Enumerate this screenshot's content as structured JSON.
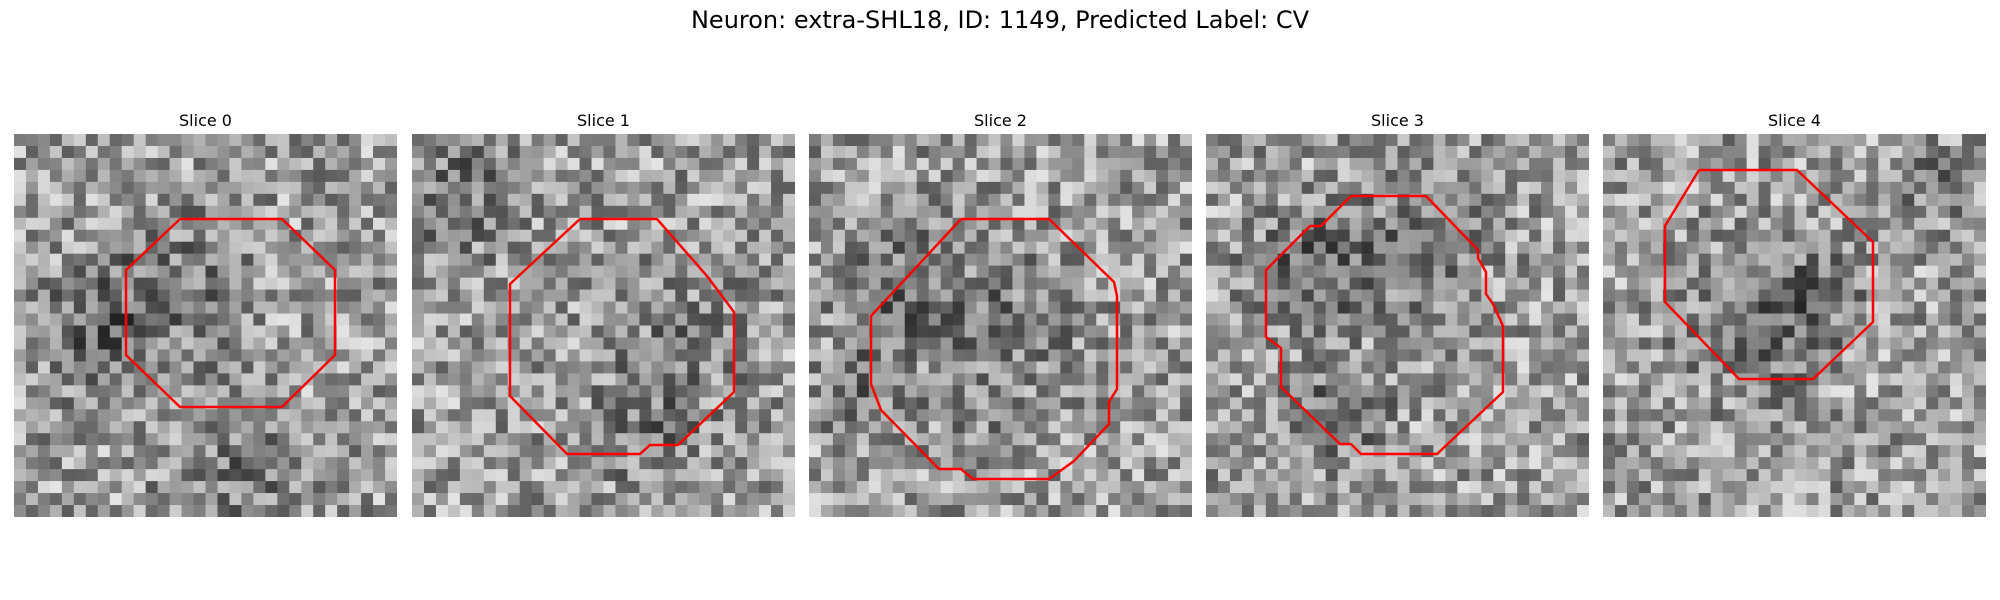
{
  "figure": {
    "title": "Neuron: extra-SHL18, ID: 1149, Predicted Label: CV",
    "contour_color": "#ff0000"
  },
  "slices": [
    {
      "title": "Slice 0"
    },
    {
      "title": "Slice 1"
    },
    {
      "title": "Slice 2"
    },
    {
      "title": "Slice 3"
    },
    {
      "title": "Slice 4"
    }
  ]
}
